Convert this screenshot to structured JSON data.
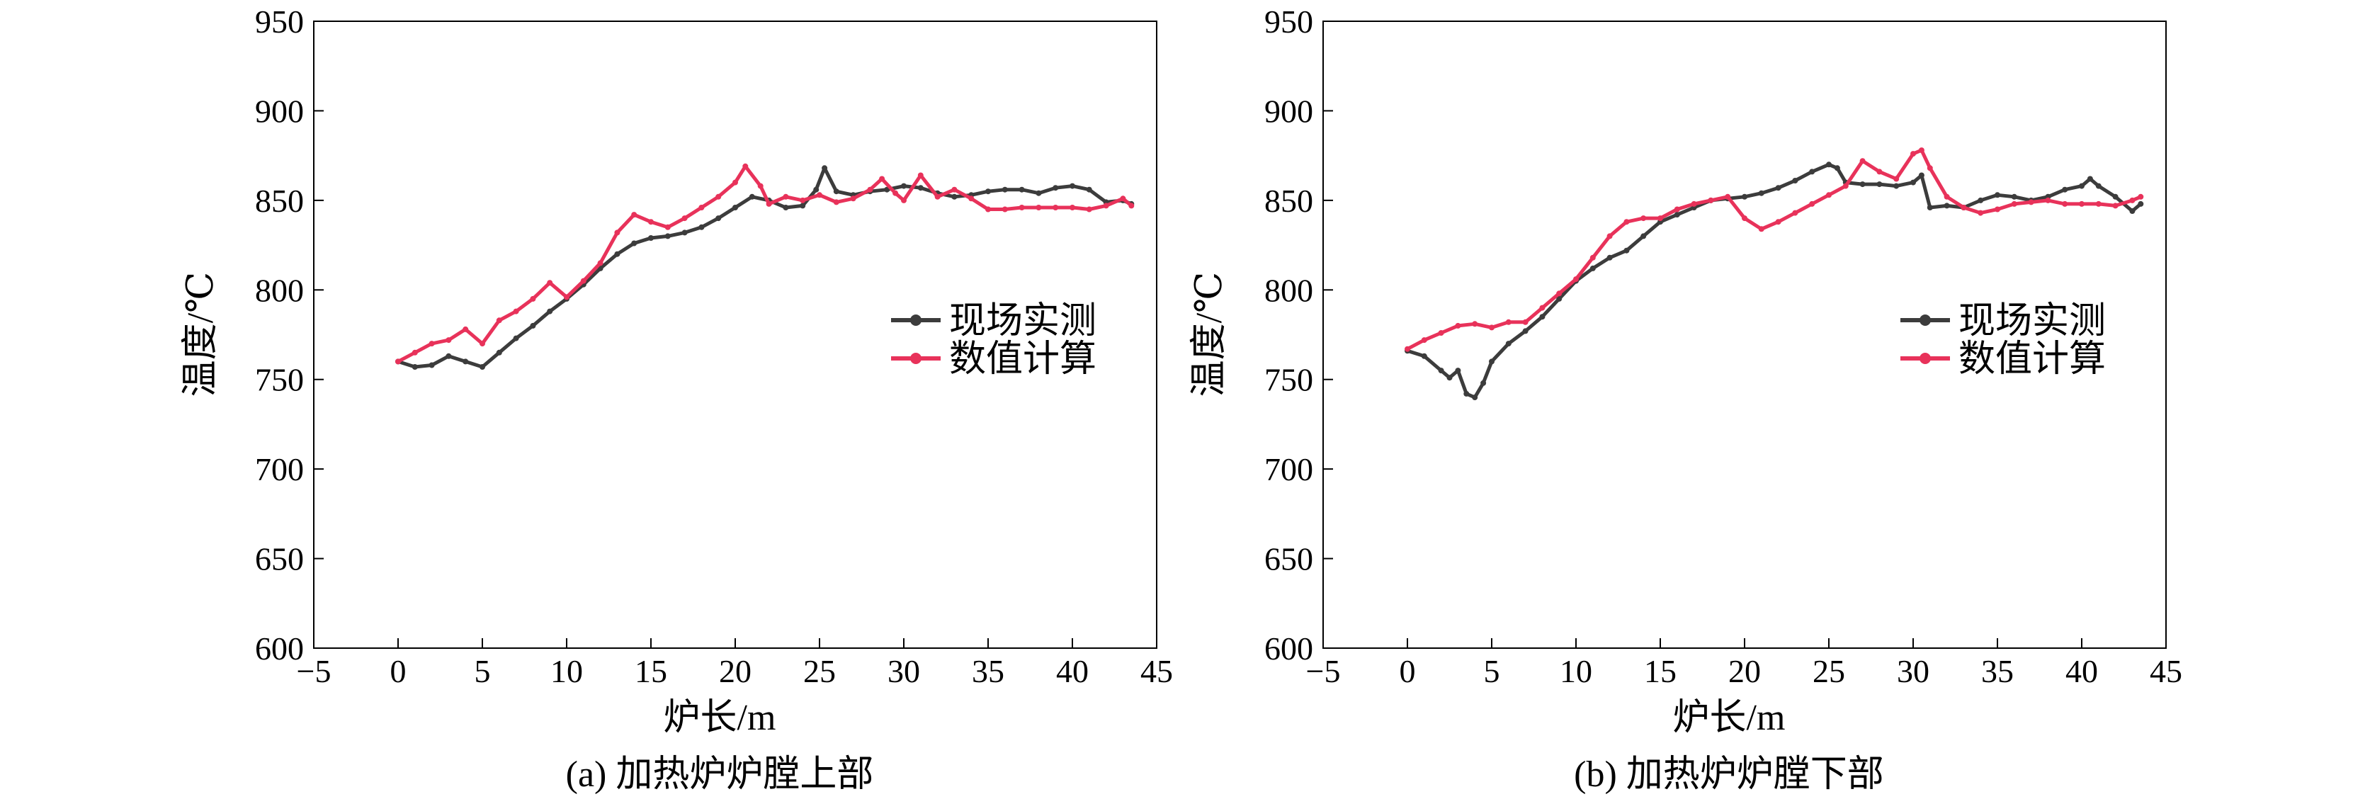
{
  "chart_data": [
    {
      "type": "line",
      "caption": "(a) 加热炉炉膛上部",
      "xlabel": "炉长/m",
      "ylabel": "温度/℃",
      "xlim": [
        -5,
        45
      ],
      "ylim": [
        600,
        950
      ],
      "xticks": [
        "−5",
        "0",
        "5",
        "10",
        "15",
        "20",
        "25",
        "30",
        "35",
        "40",
        "45"
      ],
      "yticks": [
        "600",
        "650",
        "700",
        "750",
        "800",
        "850",
        "900",
        "950"
      ],
      "grid": false,
      "legend_position": "right-middle",
      "series": [
        {
          "name": "现场实测",
          "color": "#3c3c3c",
          "x": [
            0,
            1,
            2,
            3,
            4,
            5,
            6,
            7,
            8,
            9,
            10,
            11,
            12,
            13,
            14,
            15,
            16,
            17,
            18,
            19,
            20,
            21,
            22,
            23,
            24,
            24.8,
            25.3,
            26,
            27,
            28,
            29,
            30,
            31,
            32,
            33,
            34,
            35,
            36,
            37,
            38,
            39,
            40,
            41,
            42,
            43,
            43.5
          ],
          "y": [
            760,
            757,
            758,
            763,
            760,
            757,
            765,
            773,
            780,
            788,
            795,
            803,
            812,
            820,
            826,
            829,
            830,
            832,
            835,
            840,
            846,
            852,
            850,
            846,
            847,
            856,
            868,
            855,
            853,
            855,
            856,
            858,
            857,
            854,
            852,
            853,
            855,
            856,
            856,
            854,
            857,
            858,
            856,
            849,
            850,
            848
          ]
        },
        {
          "name": "数值计算",
          "color": "#e8325a",
          "x": [
            0,
            1,
            2,
            3,
            4,
            5,
            6,
            7,
            8,
            9,
            10,
            11,
            12,
            13,
            14,
            15,
            16,
            17,
            18,
            19,
            20,
            20.6,
            21.5,
            22,
            23,
            24,
            25,
            26,
            27,
            28,
            28.7,
            29.5,
            30,
            31,
            32,
            33,
            34,
            35,
            36,
            37,
            38,
            39,
            40,
            41,
            42,
            43,
            43.5
          ],
          "y": [
            760,
            765,
            770,
            772,
            778,
            770,
            783,
            788,
            795,
            804,
            796,
            805,
            815,
            832,
            842,
            838,
            835,
            840,
            846,
            852,
            860,
            869,
            858,
            848,
            852,
            850,
            853,
            849,
            851,
            856,
            862,
            854,
            850,
            864,
            852,
            856,
            851,
            845,
            845,
            846,
            846,
            846,
            846,
            845,
            847,
            851,
            847
          ]
        }
      ]
    },
    {
      "type": "line",
      "caption": "(b) 加热炉炉膛下部",
      "xlabel": "炉长/m",
      "ylabel": "温度/℃",
      "xlim": [
        -5,
        45
      ],
      "ylim": [
        600,
        950
      ],
      "xticks": [
        "−5",
        "0",
        "5",
        "10",
        "15",
        "20",
        "25",
        "30",
        "35",
        "40",
        "45"
      ],
      "yticks": [
        "600",
        "650",
        "700",
        "750",
        "800",
        "850",
        "900",
        "950"
      ],
      "grid": false,
      "legend_position": "right-middle",
      "series": [
        {
          "name": "现场实测",
          "color": "#3c3c3c",
          "x": [
            0,
            1,
            2,
            2.5,
            3,
            3.5,
            4,
            4.5,
            5,
            6,
            7,
            8,
            9,
            10,
            11,
            12,
            13,
            14,
            15,
            16,
            17,
            18,
            19,
            20,
            21,
            22,
            23,
            24,
            25,
            25.5,
            26,
            27,
            28,
            29,
            30,
            30.5,
            31,
            32,
            33,
            34,
            35,
            36,
            37,
            38,
            39,
            40,
            40.5,
            41,
            42,
            43,
            43.5
          ],
          "y": [
            766,
            763,
            755,
            751,
            755,
            742,
            740,
            748,
            760,
            770,
            777,
            785,
            795,
            805,
            812,
            818,
            822,
            830,
            838,
            842,
            846,
            850,
            851,
            852,
            854,
            857,
            861,
            866,
            870,
            868,
            860,
            859,
            859,
            858,
            860,
            864,
            846,
            847,
            846,
            850,
            853,
            852,
            850,
            852,
            856,
            858,
            862,
            858,
            852,
            844,
            848
          ]
        },
        {
          "name": "数值计算",
          "color": "#e8325a",
          "x": [
            0,
            1,
            2,
            3,
            4,
            5,
            6,
            7,
            8,
            9,
            10,
            11,
            12,
            13,
            14,
            15,
            16,
            17,
            18,
            19,
            20,
            21,
            22,
            23,
            24,
            25,
            26,
            27,
            28,
            29,
            30,
            30.5,
            31,
            32,
            33,
            34,
            35,
            36,
            37,
            38,
            39,
            40,
            41,
            42,
            43,
            43.5
          ],
          "y": [
            767,
            772,
            776,
            780,
            781,
            779,
            782,
            782,
            790,
            798,
            806,
            818,
            830,
            838,
            840,
            840,
            845,
            848,
            850,
            852,
            840,
            834,
            838,
            843,
            848,
            853,
            858,
            872,
            866,
            862,
            876,
            878,
            868,
            852,
            846,
            843,
            845,
            848,
            849,
            850,
            848,
            848,
            848,
            847,
            850,
            852
          ]
        }
      ]
    }
  ]
}
